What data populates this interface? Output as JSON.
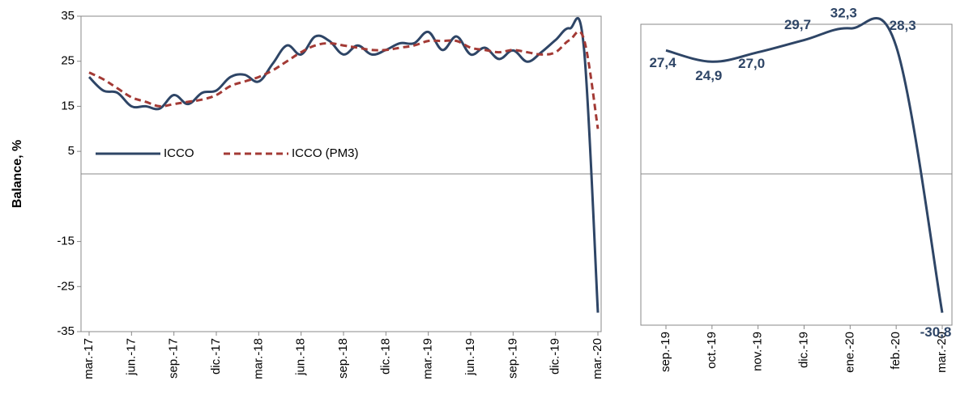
{
  "chart_data": [
    {
      "type": "line",
      "y_label": "Balance, %",
      "categories": [
        "mar.-17",
        null,
        null,
        "jun.-17",
        null,
        null,
        "sep.-17",
        null,
        null,
        "dic.-17",
        null,
        null,
        "mar.-18",
        null,
        null,
        "jun.-18",
        null,
        null,
        "sep.-18",
        null,
        null,
        "dic.-18",
        null,
        null,
        "mar.-19",
        null,
        null,
        "jun.-19",
        null,
        null,
        "sep.-19",
        null,
        null,
        "dic.-19",
        null,
        null,
        "mar.-20"
      ],
      "series": [
        {
          "name": "ICCO",
          "color": "#2e4566",
          "dash": false,
          "values": [
            21.5,
            18.5,
            18,
            15,
            15,
            14.5,
            17.5,
            15.5,
            18,
            18.5,
            21.5,
            22,
            20.5,
            24.5,
            28.5,
            26.5,
            30.5,
            29.5,
            26.5,
            28.5,
            26.5,
            27.5,
            29,
            29,
            31.5,
            27.5,
            30.5,
            26.5,
            28,
            25.5,
            27.4,
            24.9,
            27.0,
            29.7,
            32.3,
            28.3,
            -30.8
          ]
        },
        {
          "name": "ICCO (PM3)",
          "color": "#a33a35",
          "dash": true,
          "values": [
            22.5,
            21,
            19,
            17,
            16,
            15,
            15.5,
            16,
            16.5,
            17.5,
            19.5,
            20.5,
            21.5,
            23,
            25,
            27,
            28.5,
            29,
            28.5,
            28,
            27.5,
            27.5,
            28,
            28.5,
            29.5,
            29.5,
            29.5,
            28,
            27.5,
            27,
            27.5,
            27,
            26.5,
            27,
            29.7,
            30,
            10
          ]
        }
      ],
      "ylim": [
        -35,
        35
      ],
      "yticks": [
        -35,
        -25,
        -15,
        5,
        15,
        25,
        35
      ],
      "zero_line": true
    },
    {
      "type": "line",
      "categories": [
        "sep.-19",
        "oct.-19",
        "nov.-19",
        "dic.-19",
        "ene.-20",
        "feb.-20",
        "mar.-20"
      ],
      "color": "#2e4566",
      "values": [
        27.4,
        24.9,
        27.0,
        29.7,
        32.3,
        28.3,
        -30.8
      ],
      "value_labels": [
        "27,4",
        "24,9",
        "27,0",
        "29,7",
        "32,3",
        "28,3",
        "-30,8"
      ],
      "ylim": [
        -35,
        35
      ],
      "zero_line": true
    }
  ]
}
